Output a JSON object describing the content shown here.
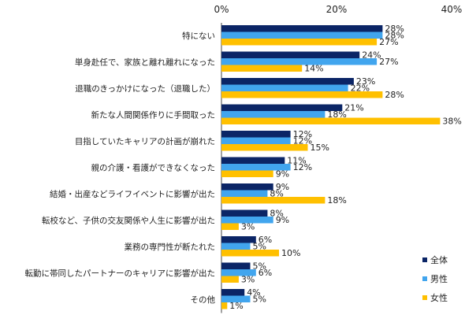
{
  "chart_data": {
    "type": "bar",
    "orientation": "horizontal",
    "categories": [
      "特にない",
      "単身赴任で、家族と離れ離れになった",
      "退職のきっかけになった（退職した）",
      "新たな人間関係作りに手間取った",
      "目指していたキャリアの計画が崩れた",
      "親の介護・看護ができなくなった",
      "結婚・出産などライフイベントに影響が出た",
      "転校など、子供の交友関係や人生に影響が出た",
      "業務の専門性が断たれた",
      "転勤に帯同したパートナーのキャリアに影響が出た",
      "その他"
    ],
    "series": [
      {
        "name": "全体",
        "color": "#0b2566",
        "values": [
          28,
          24,
          23,
          21,
          12,
          11,
          9,
          8,
          6,
          5,
          4
        ]
      },
      {
        "name": "男性",
        "color": "#41a5ee",
        "values": [
          28,
          27,
          22,
          18,
          12,
          12,
          8,
          9,
          5,
          6,
          5
        ]
      },
      {
        "name": "女性",
        "color": "#ffc000",
        "values": [
          27,
          14,
          28,
          38,
          15,
          9,
          18,
          3,
          10,
          3,
          1
        ]
      }
    ],
    "xlim": [
      0,
      40
    ],
    "ticks": [
      "0%",
      "20%",
      "40%"
    ],
    "tick_values": [
      0,
      20,
      40
    ],
    "value_suffix": "%",
    "legend_position": "right",
    "grid": false
  }
}
